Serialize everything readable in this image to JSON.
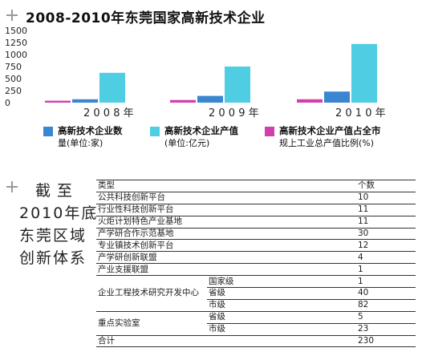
{
  "chart_data": {
    "type": "bar",
    "title": "2008-2010年东莞国家高新技术企业",
    "yticks": [
      "1500",
      "1250",
      "1000",
      "750",
      "500",
      "250",
      "0"
    ],
    "ylim": [
      0,
      1500
    ],
    "categories": [
      "2 0 0 8 年",
      "2 0 0 9 年",
      "2 0 1 0 年"
    ],
    "series": [
      {
        "name": "高新技术企业产值占全市规上工业总产值比例(%)",
        "color": "#d43fb0",
        "values": [
          40,
          55,
          70
        ]
      },
      {
        "name": "高新技术企业数量(单位:家)",
        "color": "#3a86d1",
        "values": [
          70,
          140,
          230
        ]
      },
      {
        "name": "高新技术企业产值(单位:亿元)",
        "color": "#4fcde2",
        "values": [
          620,
          750,
          1220
        ]
      }
    ],
    "legend": [
      {
        "line1": "高新技术企业数",
        "line2": "量(单位:家)",
        "color": "#3a86d1"
      },
      {
        "line1": "高新技术企业产值",
        "line2": "(单位:亿元)",
        "color": "#4fcde2"
      },
      {
        "line1": "高新技术企业产值占全市",
        "line2": "规上工业总产值比例(%)",
        "color": "#d43fb0"
      }
    ]
  },
  "side_title": [
    "截至",
    "2010年底",
    "东莞区域",
    "创新体系"
  ],
  "table": {
    "header": {
      "type": "类型",
      "count": "个数"
    },
    "simple_rows": [
      {
        "type": "公共科技创新平台",
        "count": "10"
      },
      {
        "type": "行业性科技创新平台",
        "count": "11"
      },
      {
        "type": "火炬计划特色产业基地",
        "count": "11"
      },
      {
        "type": "产学研合作示范基地",
        "count": "30"
      },
      {
        "type": "专业镇技术创新平台",
        "count": "12"
      },
      {
        "type": "产学研创新联盟",
        "count": "4"
      },
      {
        "type": "产业支援联盟",
        "count": "1"
      }
    ],
    "group1": {
      "type": "企业工程技术研究开发中心",
      "rows": [
        {
          "level": "国家级",
          "count": "1"
        },
        {
          "level": "省级",
          "count": "40"
        },
        {
          "level": "市级",
          "count": "82"
        }
      ]
    },
    "group2": {
      "type": "重点实验室",
      "rows": [
        {
          "level": "省级",
          "count": "5"
        },
        {
          "level": "市级",
          "count": "23"
        }
      ]
    },
    "total": {
      "type": "合计",
      "count": "230"
    }
  }
}
